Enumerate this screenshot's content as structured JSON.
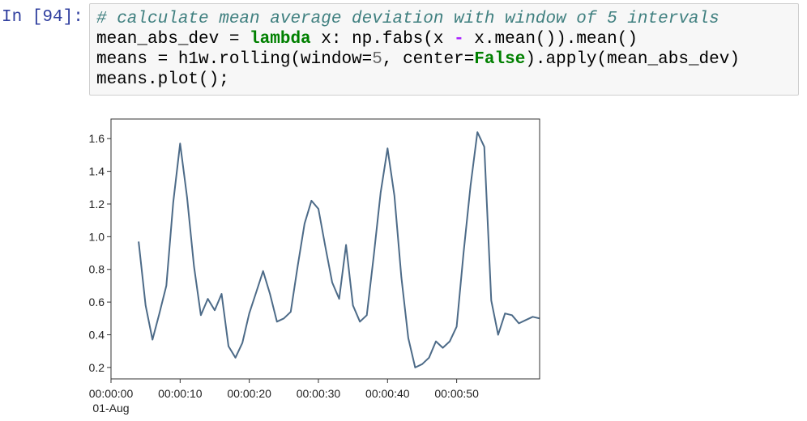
{
  "cell": {
    "prompt": "In [94]:",
    "code": {
      "comment": "# calculate mean average deviation with window of 5 intervals",
      "line2_a": "mean_abs_dev = ",
      "line2_kw": "lambda",
      "line2_b": " x: np.fabs(x ",
      "line2_op": "-",
      "line2_c": " x.mean()).mean()",
      "line3_a": "means = h1w.rolling(window=",
      "line3_num": "5",
      "line3_b": ", center=",
      "line3_kw": "False",
      "line3_c": ").apply(mean_abs_dev)",
      "line4": "means.plot();"
    }
  },
  "chart_data": {
    "type": "line",
    "x_unit": "seconds",
    "xlim": [
      0,
      62
    ],
    "ylim": [
      0.13,
      1.72
    ],
    "x_ticks": [
      {
        "value": 0,
        "label": "00:00:00",
        "sublabel": "01-Aug"
      },
      {
        "value": 10,
        "label": "00:00:10"
      },
      {
        "value": 20,
        "label": "00:00:20"
      },
      {
        "value": 30,
        "label": "00:00:30"
      },
      {
        "value": 40,
        "label": "00:00:40"
      },
      {
        "value": 50,
        "label": "00:00:50"
      }
    ],
    "y_ticks": [
      0.2,
      0.4,
      0.6,
      0.8,
      1.0,
      1.2,
      1.4,
      1.6
    ],
    "y_tick_labels": [
      "0.2",
      "0.4",
      "0.6",
      "0.8",
      "1.0",
      "1.2",
      "1.4",
      "1.6"
    ],
    "series": [
      {
        "color": "#4d6b88",
        "x": [
          4,
          5,
          6,
          7,
          8,
          9,
          10,
          11,
          12,
          13,
          14,
          15,
          16,
          17,
          18,
          19,
          20,
          21,
          22,
          23,
          24,
          25,
          26,
          27,
          28,
          29,
          30,
          31,
          32,
          33,
          34,
          35,
          36,
          37,
          38,
          39,
          40,
          41,
          42,
          43,
          44,
          45,
          46,
          47,
          48,
          49,
          50,
          51,
          52,
          53,
          54,
          55,
          56,
          57,
          58,
          59,
          60,
          61,
          62
        ],
        "y": [
          0.97,
          0.58,
          0.37,
          0.53,
          0.7,
          1.21,
          1.57,
          1.24,
          0.82,
          0.52,
          0.62,
          0.55,
          0.65,
          0.33,
          0.26,
          0.35,
          0.53,
          0.66,
          0.79,
          0.65,
          0.48,
          0.5,
          0.54,
          0.82,
          1.08,
          1.22,
          1.17,
          0.94,
          0.72,
          0.62,
          0.95,
          0.58,
          0.48,
          0.52,
          0.88,
          1.27,
          1.54,
          1.25,
          0.75,
          0.38,
          0.2,
          0.22,
          0.26,
          0.36,
          0.32,
          0.36,
          0.45,
          0.9,
          1.31,
          1.64,
          1.55,
          0.61,
          0.4,
          0.53,
          0.52,
          0.47,
          0.49,
          0.51,
          0.5
        ]
      }
    ]
  }
}
